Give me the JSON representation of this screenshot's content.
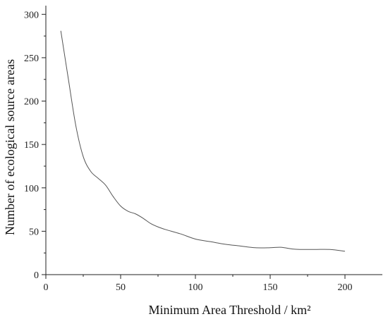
{
  "chart_data": {
    "type": "line",
    "xlabel": "Minimum Area Threshold / km²",
    "ylabel": "Number of ecological source areas",
    "xlim": [
      0,
      225
    ],
    "ylim": [
      0,
      310
    ],
    "x_ticks": [
      0,
      50,
      100,
      150,
      200
    ],
    "y_ticks": [
      0,
      50,
      100,
      150,
      200,
      250,
      300
    ],
    "grid": false,
    "legend": "none",
    "colors": {
      "line": "#555555",
      "axis": "#222222"
    },
    "series": [
      {
        "x": [
          10,
          15,
          20,
          25,
          30,
          35,
          40,
          45,
          50,
          55,
          60,
          65,
          70,
          75,
          80,
          90,
          100,
          110,
          120,
          130,
          140,
          150,
          157,
          165,
          170,
          180,
          190,
          200
        ],
        "values": [
          281,
          226,
          172,
          136,
          119,
          111,
          103,
          90,
          79,
          73,
          70,
          65,
          59,
          55,
          52,
          47,
          41,
          38,
          35,
          33,
          31,
          31,
          31.5,
          29.5,
          29,
          29,
          29,
          27
        ]
      }
    ]
  }
}
